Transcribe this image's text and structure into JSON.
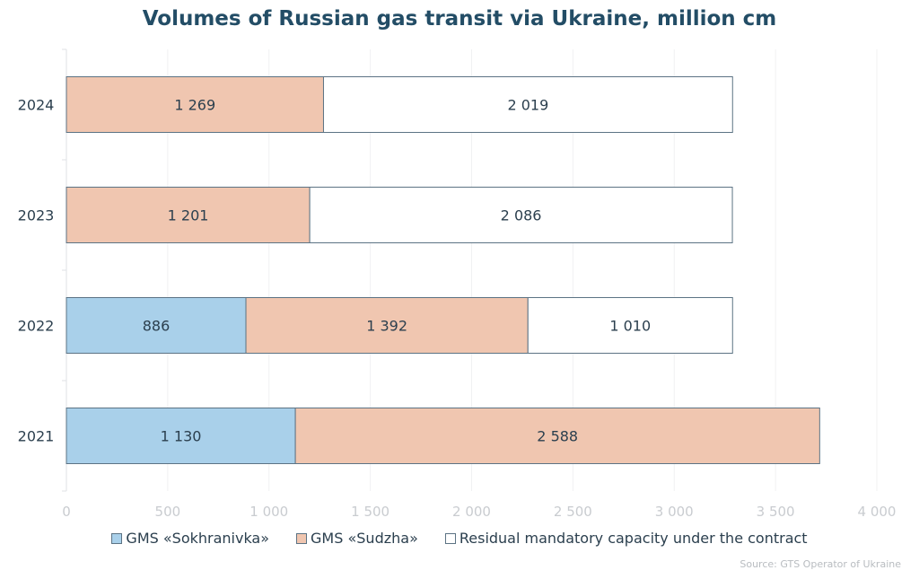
{
  "chart_data": {
    "type": "bar",
    "orientation": "horizontal",
    "stacked": true,
    "title": "Volumes of Russian gas transit via Ukraine, million cm",
    "categories": [
      "2024",
      "2023",
      "2022",
      "2021"
    ],
    "series": [
      {
        "name": "GMS «Sokhranivka»",
        "color": "#a9d0ea",
        "values": [
          0,
          0,
          886,
          1130
        ],
        "labels": [
          "",
          "",
          "886",
          "1 130"
        ]
      },
      {
        "name": "GMS «Sudzha»",
        "color": "#f0c6b0",
        "values": [
          1269,
          1201,
          1392,
          2588
        ],
        "labels": [
          "1 269",
          "1 201",
          "1 392",
          "2 588"
        ]
      },
      {
        "name": "Residual mandatory capacity under the contract",
        "color": "#ffffff",
        "values": [
          2019,
          2086,
          1010,
          0
        ],
        "labels": [
          "2 019",
          "2 086",
          "1 010",
          ""
        ]
      }
    ],
    "xlim": [
      0,
      4000
    ],
    "xticks": [
      0,
      500,
      1000,
      1500,
      2000,
      2500,
      3000,
      3500,
      4000
    ],
    "xtick_labels": [
      "0",
      "500",
      "1 000",
      "1 500",
      "2 000",
      "2 500",
      "3 000",
      "3 500",
      "4 000"
    ],
    "grid": true,
    "legend": "bottom",
    "source": "Source: GTS Operator of Ukraine"
  }
}
